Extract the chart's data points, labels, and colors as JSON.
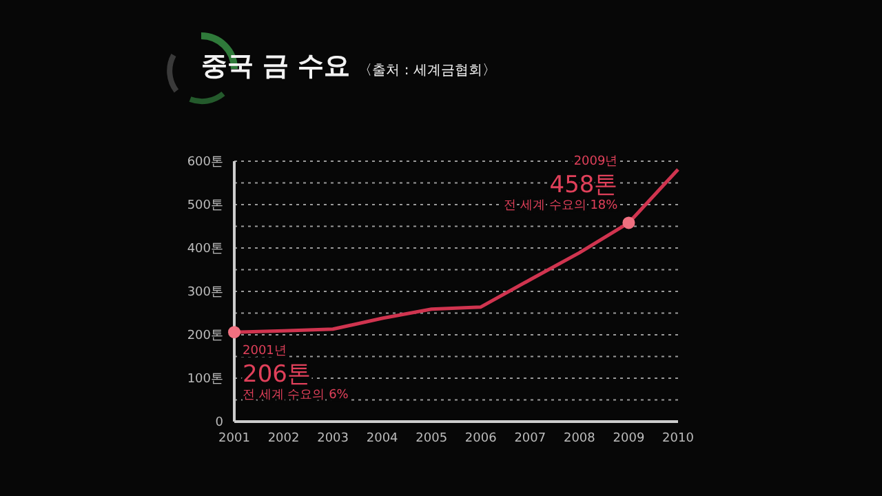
{
  "chart_data": {
    "type": "line",
    "title": "중국 금 수요",
    "subtitle": "〈출처 : 세계금협회〉",
    "categories": [
      "2001",
      "2002",
      "2003",
      "2004",
      "2005",
      "2006",
      "2007",
      "2008",
      "2009",
      "2010"
    ],
    "series": [
      {
        "color": "#d0344f",
        "marker": "none",
        "values": [
          206,
          209,
          213,
          238,
          259,
          264,
          327,
          389,
          458,
          581
        ]
      },
      {
        "type": "scatter",
        "color": "#f07080",
        "marker": "circle",
        "values": [
          206,
          null,
          null,
          null,
          null,
          null,
          null,
          null,
          458,
          null
        ]
      }
    ],
    "ylim": [
      0,
      600
    ],
    "yticks": [
      {
        "value": 0,
        "label": "0"
      },
      {
        "value": 50,
        "label": null
      },
      {
        "value": 100,
        "label": "100톤"
      },
      {
        "value": 150,
        "label": null
      },
      {
        "value": 200,
        "label": "200톤"
      },
      {
        "value": 250,
        "label": null
      },
      {
        "value": 300,
        "label": "300톤"
      },
      {
        "value": 350,
        "label": null
      },
      {
        "value": 400,
        "label": "400톤"
      },
      {
        "value": 450,
        "label": null
      },
      {
        "value": 500,
        "label": "500톤"
      },
      {
        "value": 550,
        "label": null
      },
      {
        "value": 600,
        "label": "600톤"
      }
    ],
    "grid": "y",
    "line_style": "solid",
    "annotations": [
      "2001년",
      "206톤",
      "전 세계 수요의 6%",
      "2009년",
      "458톤",
      "전 세계 수요의 18%"
    ]
  }
}
